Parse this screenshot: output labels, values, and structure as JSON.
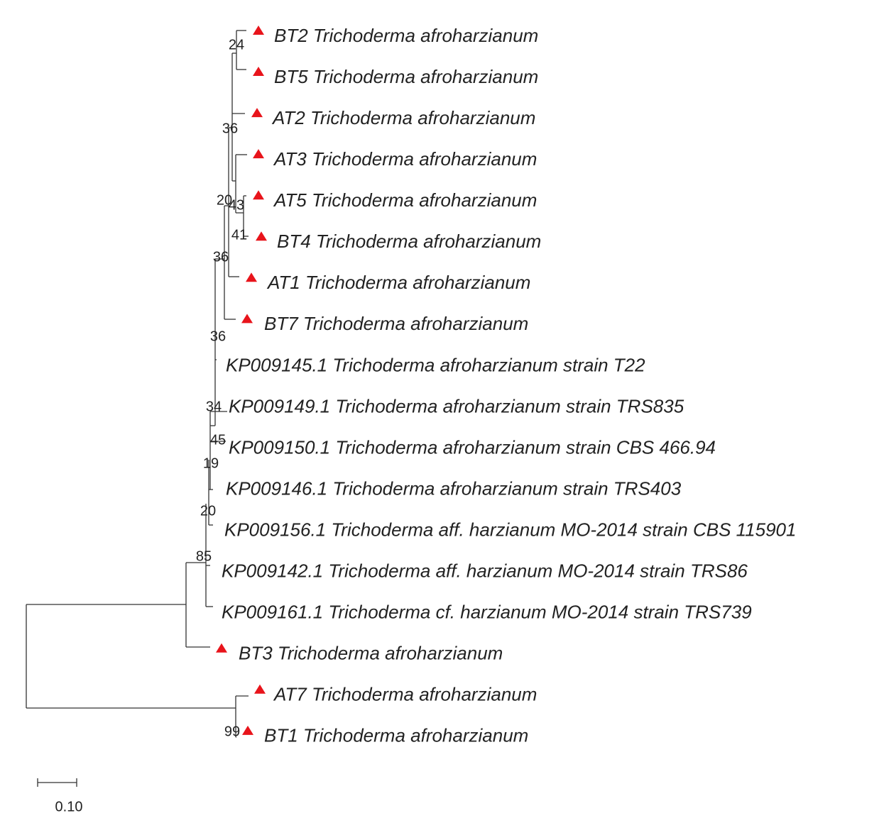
{
  "leaves": [
    {
      "label": "BT2 Trichoderma afroharzianum",
      "marker": true
    },
    {
      "label": "BT5 Trichoderma afroharzianum",
      "marker": true
    },
    {
      "label": "AT2 Trichoderma afroharzianum",
      "marker": true
    },
    {
      "label": "AT3 Trichoderma afroharzianum",
      "marker": true
    },
    {
      "label": "AT5 Trichoderma afroharzianum",
      "marker": true
    },
    {
      "label": "BT4 Trichoderma afroharzianum",
      "marker": true
    },
    {
      "label": "AT1 Trichoderma afroharzianum",
      "marker": true
    },
    {
      "label": "BT7 Trichoderma afroharzianum",
      "marker": true
    },
    {
      "label": "KP009145.1 Trichoderma afroharzianum strain T22",
      "marker": false
    },
    {
      "label": "KP009149.1 Trichoderma afroharzianum strain TRS835",
      "marker": false
    },
    {
      "label": "KP009150.1 Trichoderma afroharzianum strain CBS 466.94",
      "marker": false
    },
    {
      "label": "KP009146.1 Trichoderma afroharzianum strain TRS403",
      "marker": false
    },
    {
      "label": "KP009156.1 Trichoderma aff. harzianum MO-2014 strain CBS 115901",
      "marker": false
    },
    {
      "label": "KP009142.1 Trichoderma aff. harzianum MO-2014 strain TRS86",
      "marker": false
    },
    {
      "label": "KP009161.1 Trichoderma cf. harzianum MO-2014 strain TRS739",
      "marker": false
    },
    {
      "label": "BT3 Trichoderma afroharzianum",
      "marker": true
    },
    {
      "label": "AT7 Trichoderma afroharzianum",
      "marker": true
    },
    {
      "label": "BT1 Trichoderma afroharzianum",
      "marker": true
    }
  ],
  "bootstrap": [
    24,
    36,
    20,
    43,
    41,
    36,
    36,
    34,
    45,
    19,
    20,
    85,
    99
  ],
  "scale_bar": {
    "label": "0.10"
  }
}
